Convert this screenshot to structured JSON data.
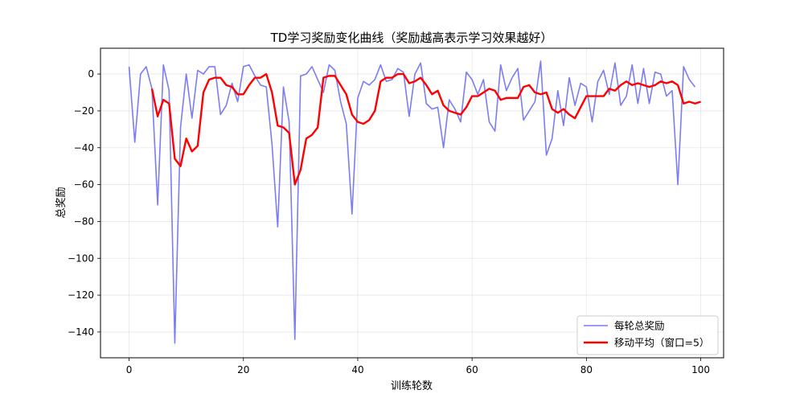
{
  "chart_data": {
    "type": "line",
    "title": "TD学习奖励变化曲线（奖励越高表示学习效果越好）",
    "xlabel": "训练轮数",
    "ylabel": "总奖励",
    "xlim": [
      -5,
      104
    ],
    "ylim": [
      -154,
      14
    ],
    "xticks": [
      0,
      20,
      40,
      60,
      80,
      100
    ],
    "yticks": [
      0,
      -20,
      -40,
      -60,
      -80,
      -100,
      -120,
      -140
    ],
    "grid": true,
    "legend_position": "lower-right",
    "series": [
      {
        "name": "每轮总奖励",
        "color": "#4444ee",
        "x_start": 0,
        "values": [
          4,
          -37,
          0,
          4,
          -8,
          -71,
          5,
          -9,
          -146,
          -29,
          0,
          -24,
          2,
          0,
          4,
          4,
          -22,
          -17,
          -5,
          -15,
          4,
          5,
          -1,
          -6,
          -7,
          -38,
          -83,
          -7,
          -26,
          -144,
          -1,
          0,
          4,
          -3,
          -10,
          5,
          2,
          -15,
          -27,
          -76,
          -13,
          -4,
          -6,
          -3,
          5,
          -4,
          -3,
          3,
          1,
          -23,
          0,
          6,
          -16,
          -19,
          -18,
          -40,
          -14,
          -19,
          -26,
          1,
          -3,
          -11,
          -3,
          -26,
          -31,
          5,
          -9,
          -2,
          3,
          -25,
          -20,
          -15,
          7,
          -44,
          -35,
          -9,
          -28,
          -2,
          -17,
          -5,
          -7,
          -26,
          -4,
          2,
          -11,
          6,
          -17,
          -12,
          5,
          -16,
          3,
          -16,
          1,
          0,
          -12,
          -9,
          -60,
          4,
          -3,
          -7
        ]
      },
      {
        "name": "移动平均（窗口=5）",
        "color": "#ff0000",
        "x_start": 4,
        "values": [
          -8,
          -23,
          -14,
          -16,
          -46,
          -50,
          -35,
          -42,
          -39,
          -10,
          -3,
          -2,
          -2,
          -6,
          -7,
          -11,
          -11,
          -6,
          -2,
          -2,
          0,
          -10,
          -28,
          -29,
          -32,
          -60,
          -52,
          -35,
          -33,
          -29,
          -2,
          -1,
          -1,
          -6,
          -11,
          -22,
          -26,
          -27,
          -25,
          -20,
          -4,
          -2,
          -2,
          0,
          0,
          -5,
          -4,
          -2,
          -6,
          -11,
          -9,
          -17,
          -20,
          -21,
          -22,
          -18,
          -12,
          -12,
          -10,
          -8,
          -9,
          -14,
          -13,
          -13,
          -13,
          -7,
          -6,
          -10,
          -11,
          -10,
          -19,
          -21,
          -19,
          -22,
          -24,
          -18,
          -12,
          -12,
          -12,
          -12,
          -8,
          -9,
          -6,
          -4,
          -6,
          -5,
          -6,
          -7,
          -6,
          -4,
          -5,
          -4,
          -6,
          -16,
          -15,
          -16,
          -15
        ]
      }
    ]
  }
}
